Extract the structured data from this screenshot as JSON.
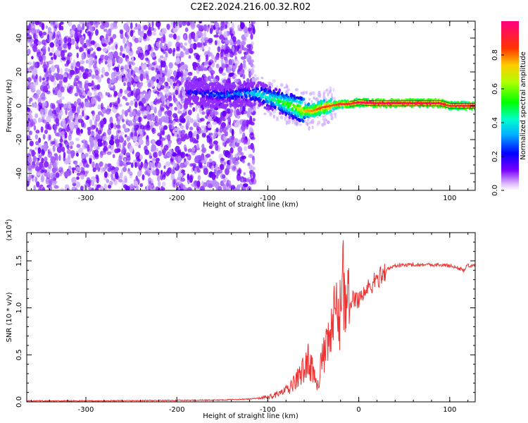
{
  "title": "C2E2.2024.216.00.32.R02",
  "chart_data": [
    {
      "type": "heatmap",
      "xlabel": "Height of straight line (km)",
      "ylabel": "Frequency (Hz)",
      "xlim": [
        -365,
        128
      ],
      "ylim": [
        -50,
        50
      ],
      "x_ticks": [
        -300,
        -200,
        -100,
        0,
        100
      ],
      "y_ticks": [
        -40,
        -20,
        0,
        20,
        40
      ],
      "colorbar": {
        "label": "Normalized spectral amplitude",
        "range": [
          0,
          1
        ],
        "ticks": [
          "0.0",
          "0.2",
          "0.4",
          "0.6",
          "0.8"
        ],
        "colormap": "hsv_inverted"
      },
      "noise_region_x": [
        -365,
        -115
      ],
      "signal_track": {
        "x": [
          -190,
          -170,
          -150,
          -130,
          -110,
          -100,
          -90,
          -80,
          -70,
          -60,
          -50,
          -40,
          -30,
          -20,
          -10,
          0,
          20,
          50,
          90,
          100,
          128
        ],
        "frequency": [
          8,
          7,
          6,
          7,
          7,
          5,
          3,
          1,
          -1,
          -3,
          -3,
          -1,
          0,
          1,
          1,
          2,
          1.5,
          1.5,
          1.5,
          0,
          0
        ],
        "amplitude": [
          0.25,
          0.3,
          0.35,
          0.35,
          0.45,
          0.5,
          0.55,
          0.6,
          0.65,
          0.75,
          0.8,
          0.85,
          0.85,
          0.9,
          0.9,
          0.95,
          0.98,
          0.98,
          0.98,
          0.9,
          0.95
        ]
      }
    },
    {
      "type": "line",
      "xlabel": "Height of straight line (km)",
      "ylabel": "SNR (10 * v/v)",
      "y_exponent": "(x10",
      "y_exponent_power": "4",
      "y_exponent_close": ")",
      "xlim": [
        -365,
        128
      ],
      "ylim": [
        0,
        1.8
      ],
      "x_ticks": [
        -300,
        -200,
        -100,
        0,
        100
      ],
      "y_ticks": [
        "0.0",
        "0.5",
        "1.0",
        "1.5"
      ],
      "line_color": "#ee3333",
      "series": [
        {
          "x": [
            -365,
            -300,
            -200,
            -150,
            -120,
            -100,
            -90,
            -80,
            -75,
            -70,
            -65,
            -60,
            -55,
            -50,
            -45,
            -40,
            -35,
            -30,
            -25,
            -20,
            -18,
            -15,
            -10,
            -5,
            0,
            5,
            10,
            15,
            20,
            25,
            30,
            40,
            60,
            80,
            100,
            110,
            115,
            120,
            128
          ],
          "y": [
            0.01,
            0.01,
            0.015,
            0.02,
            0.03,
            0.05,
            0.08,
            0.12,
            0.15,
            0.22,
            0.28,
            0.35,
            0.45,
            0.3,
            0.2,
            0.45,
            0.55,
            0.75,
            0.95,
            0.9,
            1.8,
            0.9,
            1.05,
            1.1,
            1.1,
            1.15,
            1.2,
            1.25,
            1.3,
            1.35,
            1.4,
            1.45,
            1.46,
            1.46,
            1.45,
            1.42,
            1.4,
            1.45,
            1.44
          ]
        }
      ]
    }
  ]
}
